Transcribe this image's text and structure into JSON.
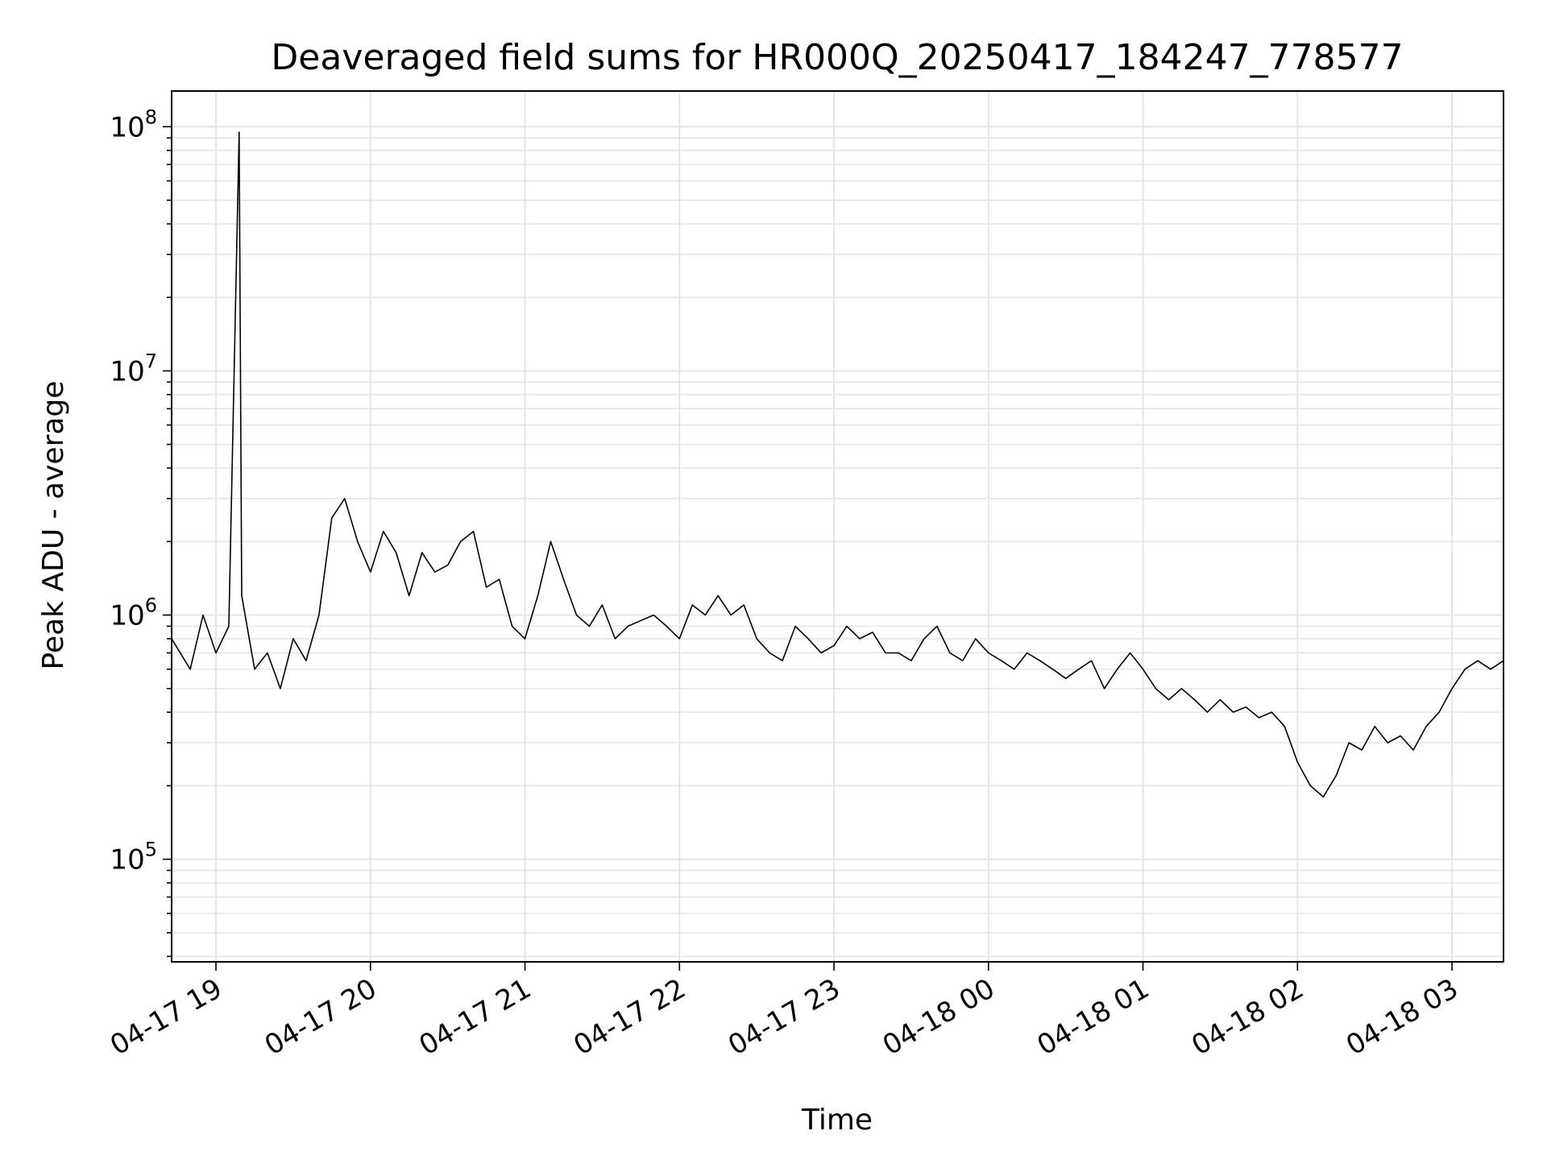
{
  "chart_data": {
    "type": "line",
    "title": "Deaveraged field sums for HR000Q_20250417_184247_778577",
    "xlabel": "Time",
    "ylabel": "Peak ADU - average",
    "yscale": "log",
    "ylim": [
      38000,
      140000000
    ],
    "xlim": [
      "2025-04-17 18:42:47",
      "2025-04-18 03:20:00"
    ],
    "grid": true,
    "line_color": "#000000",
    "x_ticks": [
      {
        "t": "2025-04-17 19:00",
        "label": "04-17 19"
      },
      {
        "t": "2025-04-17 20:00",
        "label": "04-17 20"
      },
      {
        "t": "2025-04-17 21:00",
        "label": "04-17 21"
      },
      {
        "t": "2025-04-17 22:00",
        "label": "04-17 22"
      },
      {
        "t": "2025-04-17 23:00",
        "label": "04-17 23"
      },
      {
        "t": "2025-04-18 00:00",
        "label": "04-18 00"
      },
      {
        "t": "2025-04-18 01:00",
        "label": "04-18 01"
      },
      {
        "t": "2025-04-18 02:00",
        "label": "04-18 02"
      },
      {
        "t": "2025-04-18 03:00",
        "label": "04-18 03"
      }
    ],
    "y_ticks": [
      {
        "value": 100000,
        "base": "10",
        "exp": "5"
      },
      {
        "value": 1000000,
        "base": "10",
        "exp": "6"
      },
      {
        "value": 10000000,
        "base": "10",
        "exp": "7"
      },
      {
        "value": 100000000,
        "base": "10",
        "exp": "8"
      }
    ],
    "series": [
      {
        "x": [
          "2025-04-17 18:42:47",
          "2025-04-17 18:50",
          "2025-04-17 18:55",
          "2025-04-17 19:00",
          "2025-04-17 19:05",
          "2025-04-17 19:09",
          "2025-04-17 19:10",
          "2025-04-17 19:15",
          "2025-04-17 19:20",
          "2025-04-17 19:25",
          "2025-04-17 19:30",
          "2025-04-17 19:35",
          "2025-04-17 19:40",
          "2025-04-17 19:45",
          "2025-04-17 19:50",
          "2025-04-17 19:55",
          "2025-04-17 20:00",
          "2025-04-17 20:05",
          "2025-04-17 20:10",
          "2025-04-17 20:15",
          "2025-04-17 20:20",
          "2025-04-17 20:25",
          "2025-04-17 20:30",
          "2025-04-17 20:35",
          "2025-04-17 20:40",
          "2025-04-17 20:45",
          "2025-04-17 20:50",
          "2025-04-17 20:55",
          "2025-04-17 21:00",
          "2025-04-17 21:05",
          "2025-04-17 21:10",
          "2025-04-17 21:15",
          "2025-04-17 21:20",
          "2025-04-17 21:25",
          "2025-04-17 21:30",
          "2025-04-17 21:35",
          "2025-04-17 21:40",
          "2025-04-17 21:45",
          "2025-04-17 21:50",
          "2025-04-17 21:55",
          "2025-04-17 22:00",
          "2025-04-17 22:05",
          "2025-04-17 22:10",
          "2025-04-17 22:15",
          "2025-04-17 22:20",
          "2025-04-17 22:25",
          "2025-04-17 22:30",
          "2025-04-17 22:35",
          "2025-04-17 22:40",
          "2025-04-17 22:45",
          "2025-04-17 22:50",
          "2025-04-17 22:55",
          "2025-04-17 23:00",
          "2025-04-17 23:05",
          "2025-04-17 23:10",
          "2025-04-17 23:15",
          "2025-04-17 23:20",
          "2025-04-17 23:25",
          "2025-04-17 23:30",
          "2025-04-17 23:35",
          "2025-04-17 23:40",
          "2025-04-17 23:45",
          "2025-04-17 23:50",
          "2025-04-17 23:55",
          "2025-04-18 00:00",
          "2025-04-18 00:05",
          "2025-04-18 00:10",
          "2025-04-18 00:15",
          "2025-04-18 00:20",
          "2025-04-18 00:25",
          "2025-04-18 00:30",
          "2025-04-18 00:35",
          "2025-04-18 00:40",
          "2025-04-18 00:45",
          "2025-04-18 00:50",
          "2025-04-18 00:55",
          "2025-04-18 01:00",
          "2025-04-18 01:05",
          "2025-04-18 01:10",
          "2025-04-18 01:15",
          "2025-04-18 01:20",
          "2025-04-18 01:25",
          "2025-04-18 01:30",
          "2025-04-18 01:35",
          "2025-04-18 01:40",
          "2025-04-18 01:45",
          "2025-04-18 01:50",
          "2025-04-18 01:55",
          "2025-04-18 02:00",
          "2025-04-18 02:05",
          "2025-04-18 02:10",
          "2025-04-18 02:15",
          "2025-04-18 02:20",
          "2025-04-18 02:25",
          "2025-04-18 02:30",
          "2025-04-18 02:35",
          "2025-04-18 02:40",
          "2025-04-18 02:45",
          "2025-04-18 02:50",
          "2025-04-18 02:55",
          "2025-04-18 03:00",
          "2025-04-18 03:05",
          "2025-04-18 03:10",
          "2025-04-18 03:15",
          "2025-04-18 03:20"
        ],
        "y": [
          800000,
          600000,
          1000000,
          700000,
          900000,
          95000000,
          1200000,
          600000,
          700000,
          500000,
          800000,
          650000,
          1000000,
          2500000,
          3000000,
          2000000,
          1500000,
          2200000,
          1800000,
          1200000,
          1800000,
          1500000,
          1600000,
          2000000,
          2200000,
          1300000,
          1400000,
          900000,
          800000,
          1200000,
          2000000,
          1400000,
          1000000,
          900000,
          1100000,
          800000,
          900000,
          950000,
          1000000,
          900000,
          800000,
          1100000,
          1000000,
          1200000,
          1000000,
          1100000,
          800000,
          700000,
          650000,
          900000,
          800000,
          700000,
          750000,
          900000,
          800000,
          850000,
          700000,
          700000,
          650000,
          800000,
          900000,
          700000,
          650000,
          800000,
          700000,
          650000,
          600000,
          700000,
          650000,
          600000,
          550000,
          600000,
          650000,
          500000,
          600000,
          700000,
          600000,
          500000,
          450000,
          500000,
          450000,
          400000,
          450000,
          400000,
          420000,
          380000,
          400000,
          350000,
          250000,
          200000,
          180000,
          220000,
          300000,
          280000,
          350000,
          300000,
          320000,
          280000,
          350000,
          400000,
          500000,
          600000,
          650000,
          600000,
          650000
        ]
      }
    ]
  }
}
